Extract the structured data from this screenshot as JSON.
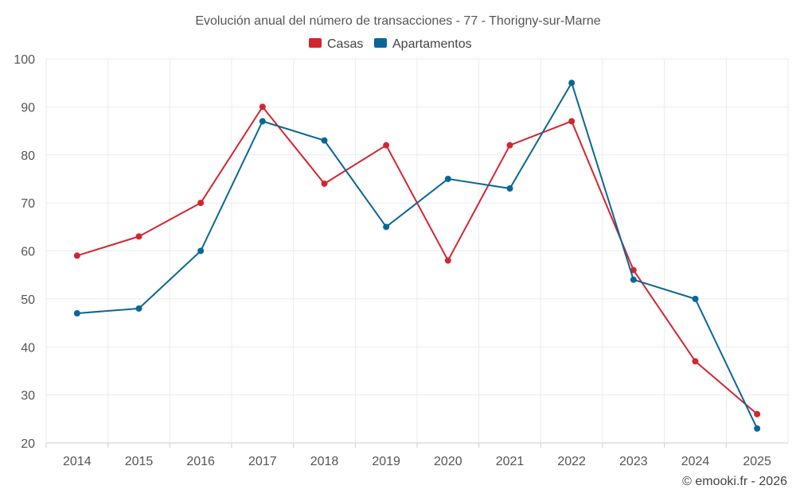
{
  "chart_data": {
    "type": "line",
    "title": "Evolución anual del número de transacciones - 77 - Thorigny-sur-Marne",
    "categories": [
      "2014",
      "2015",
      "2016",
      "2017",
      "2018",
      "2019",
      "2020",
      "2021",
      "2022",
      "2023",
      "2024",
      "2025"
    ],
    "series": [
      {
        "name": "Casas",
        "color": "#d22630",
        "values": [
          59,
          63,
          70,
          90,
          74,
          82,
          58,
          82,
          87,
          56,
          37,
          26
        ]
      },
      {
        "name": "Apartamentos",
        "color": "#0b6696",
        "values": [
          47,
          48,
          60,
          87,
          83,
          65,
          75,
          73,
          95,
          54,
          50,
          23
        ]
      }
    ],
    "ylim": [
      20,
      100
    ],
    "yticks": [
      "20",
      "30",
      "40",
      "50",
      "60",
      "70",
      "80",
      "90",
      "100"
    ],
    "xlabel": "",
    "ylabel": "",
    "grid": true,
    "legend_position": "top-center"
  },
  "credit": "© emooki.fr - 2026"
}
